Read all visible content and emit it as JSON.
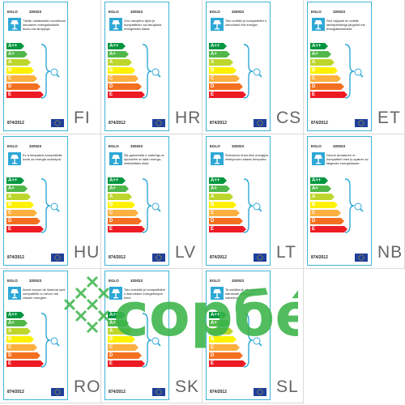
{
  "label_common": {
    "brand": "EGLO",
    "model": "320023",
    "regulation": "874/2012",
    "classes": [
      "A++",
      "A+",
      "A",
      "B",
      "C",
      "D",
      "E"
    ],
    "class_colors": [
      "#00963f",
      "#50b748",
      "#bdd62e",
      "#fff200",
      "#fbb040",
      "#f37021",
      "#ed1c24"
    ]
  },
  "labels": [
    {
      "lang": "FI",
      "text": "Tähän valaisimeen soveltuvat seuraavin energialuokkiin kuulu-via lamppuja:"
    },
    {
      "lang": "HR",
      "text": "Ovo rasvjetno tijelo je kompatibilno sa žaruljama energetskih klasa:"
    },
    {
      "lang": "CS",
      "text": "Toto svítidlo je kompatibilní s žárovkami tříd energie:"
    },
    {
      "lang": "ET",
      "text": "See valgusti on sobilik lambipirnidega järgmist est energiaklassidest:"
    },
    {
      "lang": "HU",
      "text": "Ez a lámpatest kompatibilis izzók az energia osztályok:"
    },
    {
      "lang": "LV",
      "text": "Šis gaismeklis ir saderīgs ar spuldzēm ar šādu energo-efektivitātes klasi:"
    },
    {
      "lang": "LT",
      "text": "Šviestuvui tinka šios energijos efektyvumo klasės lemputės:"
    },
    {
      "lang": "NB",
      "text": "Denne armaturen er kompatibel med ly-spærer av følgende energiklasser:"
    },
    {
      "lang": "RO",
      "text": "Acest corpuri de iluminat sunt compatibile cu becuri din clasele energice:"
    },
    {
      "lang": "SK",
      "text": "Toto svietidlo je kompatibilné s žiarovkami energetických tried:"
    },
    {
      "lang": "SL",
      "text": "Ta svetilka je združljiva z žarnicami energijskih razredov:"
    }
  ],
  "watermark": {
    "text": "copбé",
    "color": "#3bb54a"
  },
  "icons": [
    "table-lamp-icon",
    "lightbulb-icon",
    "eu-flag-icon",
    "brace-icon"
  ]
}
